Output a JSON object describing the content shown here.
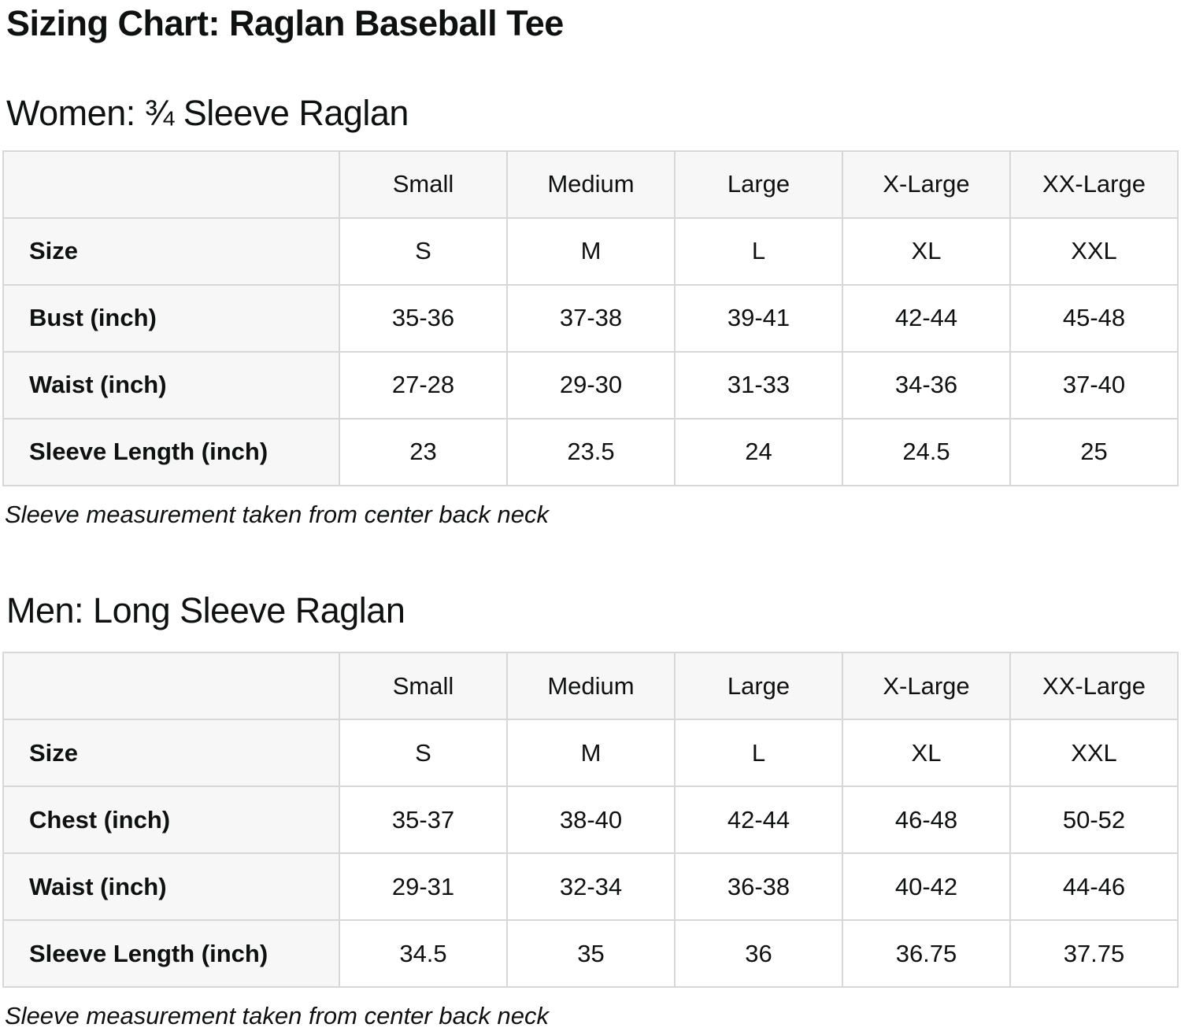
{
  "page": {
    "title": "Sizing Chart: Raglan Baseball Tee"
  },
  "columns": [
    "Small",
    "Medium",
    "Large",
    "X-Large",
    "XX-Large"
  ],
  "sections": [
    {
      "heading": "Women: ¾ Sleeve Raglan",
      "note": "Sleeve measurement taken from center back neck",
      "rows": [
        {
          "label": "Size",
          "values": [
            "S",
            "M",
            "L",
            "XL",
            "XXL"
          ]
        },
        {
          "label": "Bust (inch)",
          "values": [
            "35-36",
            "37-38",
            "39-41",
            "42-44",
            "45-48"
          ]
        },
        {
          "label": "Waist (inch)",
          "values": [
            "27-28",
            "29-30",
            "31-33",
            "34-36",
            "37-40"
          ]
        },
        {
          "label": "Sleeve Length (inch)",
          "values": [
            "23",
            "23.5",
            "24",
            "24.5",
            "25"
          ]
        }
      ]
    },
    {
      "heading": "Men: Long Sleeve Raglan",
      "note": "Sleeve measurement taken from center back neck",
      "rows": [
        {
          "label": "Size",
          "values": [
            "S",
            "M",
            "L",
            "XL",
            "XXL"
          ]
        },
        {
          "label": "Chest (inch)",
          "values": [
            "35-37",
            "38-40",
            "42-44",
            "46-48",
            "50-52"
          ]
        },
        {
          "label": "Waist (inch)",
          "values": [
            "29-31",
            "32-34",
            "36-38",
            "40-42",
            "44-46"
          ]
        },
        {
          "label": "Sleeve Length (inch)",
          "values": [
            "34.5",
            "35",
            "36",
            "36.75",
            "37.75"
          ]
        }
      ]
    }
  ],
  "colors": {
    "text": "#0f1111",
    "table_border": "#d6d8d8",
    "header_cell_background": "#f7f7f7",
    "data_cell_background": "#ffffff",
    "page_background": "#ffffff"
  },
  "chart_data": [
    {
      "type": "table",
      "title": "Women: ¾ Sleeve Raglan",
      "columns": [
        "",
        "Small",
        "Medium",
        "Large",
        "X-Large",
        "XX-Large"
      ],
      "rows": [
        [
          "Size",
          "S",
          "M",
          "L",
          "XL",
          "XXL"
        ],
        [
          "Bust (inch)",
          "35-36",
          "37-38",
          "39-41",
          "42-44",
          "45-48"
        ],
        [
          "Waist (inch)",
          "27-28",
          "29-30",
          "31-33",
          "34-36",
          "37-40"
        ],
        [
          "Sleeve Length (inch)",
          "23",
          "23.5",
          "24",
          "24.5",
          "25"
        ]
      ],
      "footnote": "Sleeve measurement taken from center back neck"
    },
    {
      "type": "table",
      "title": "Men: Long Sleeve Raglan",
      "columns": [
        "",
        "Small",
        "Medium",
        "Large",
        "X-Large",
        "XX-Large"
      ],
      "rows": [
        [
          "Size",
          "S",
          "M",
          "L",
          "XL",
          "XXL"
        ],
        [
          "Chest (inch)",
          "35-37",
          "38-40",
          "42-44",
          "46-48",
          "50-52"
        ],
        [
          "Waist (inch)",
          "29-31",
          "32-34",
          "36-38",
          "40-42",
          "44-46"
        ],
        [
          "Sleeve Length (inch)",
          "34.5",
          "35",
          "36",
          "36.75",
          "37.75"
        ]
      ],
      "footnote": "Sleeve measurement taken from center back neck"
    }
  ]
}
